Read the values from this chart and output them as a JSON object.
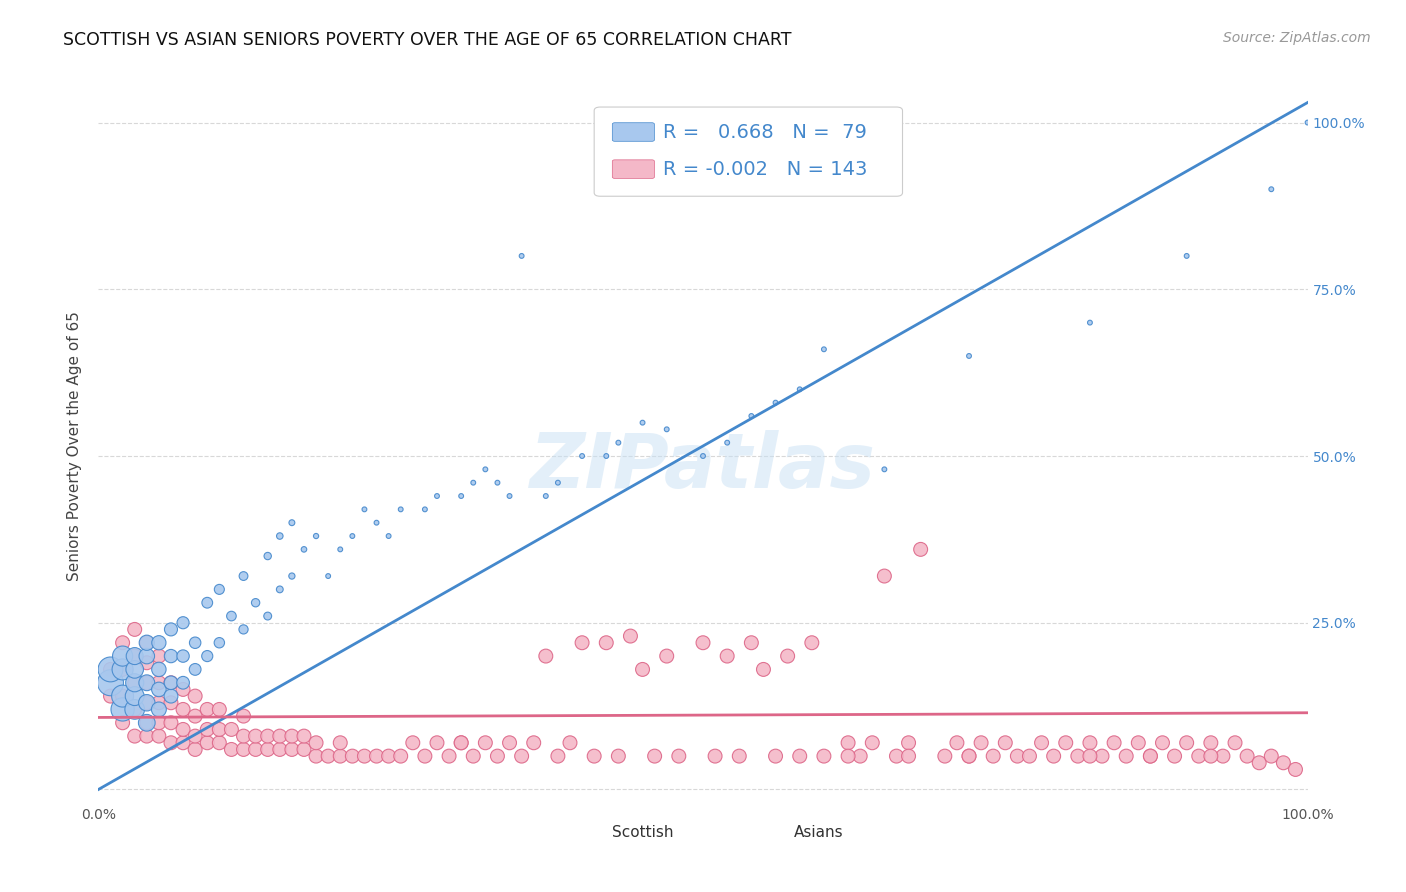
{
  "title": "SCOTTISH VS ASIAN SENIORS POVERTY OVER THE AGE OF 65 CORRELATION CHART",
  "source": "Source: ZipAtlas.com",
  "ylabel": "Seniors Poverty Over the Age of 65",
  "bg_color": "#ffffff",
  "plot_bg_color": "#ffffff",
  "grid_color": "#d8d8d8",
  "scottish_color": "#a8c8ee",
  "asian_color": "#f4b8c8",
  "scottish_line_color": "#4488cc",
  "asian_line_color": "#dd6688",
  "scottish_R": 0.668,
  "scottish_N": 79,
  "asian_R": -0.002,
  "asian_N": 143,
  "title_fontsize": 12.5,
  "source_fontsize": 10,
  "axis_label_fontsize": 11,
  "tick_fontsize": 10,
  "legend_fontsize": 13,
  "watermark": "ZIPatlas",
  "xlim": [
    0,
    1
  ],
  "ylim": [
    -0.02,
    1.05
  ],
  "xticks": [
    0.0,
    0.25,
    0.5,
    0.75,
    1.0
  ],
  "yticks": [
    0.0,
    0.25,
    0.5,
    0.75,
    1.0
  ],
  "xticklabels": [
    "0.0%",
    "",
    "",
    "",
    "100.0%"
  ],
  "right_yticklabels": [
    "",
    "25.0%",
    "50.0%",
    "75.0%",
    "100.0%"
  ],
  "scottish_trend": [
    0.0,
    1.05
  ],
  "asian_trend_start": 0.1,
  "asian_trend_end": 0.115,
  "scottish_x": [
    0.01,
    0.01,
    0.02,
    0.02,
    0.02,
    0.02,
    0.03,
    0.03,
    0.03,
    0.03,
    0.03,
    0.04,
    0.04,
    0.04,
    0.04,
    0.04,
    0.05,
    0.05,
    0.05,
    0.05,
    0.06,
    0.06,
    0.06,
    0.06,
    0.07,
    0.07,
    0.07,
    0.08,
    0.08,
    0.09,
    0.09,
    0.1,
    0.1,
    0.11,
    0.12,
    0.12,
    0.13,
    0.14,
    0.14,
    0.15,
    0.15,
    0.16,
    0.16,
    0.17,
    0.18,
    0.19,
    0.2,
    0.21,
    0.22,
    0.23,
    0.24,
    0.25,
    0.27,
    0.28,
    0.3,
    0.31,
    0.32,
    0.33,
    0.34,
    0.35,
    0.37,
    0.38,
    0.4,
    0.42,
    0.43,
    0.45,
    0.47,
    0.5,
    0.52,
    0.54,
    0.56,
    0.58,
    0.6,
    0.65,
    0.72,
    0.82,
    0.9,
    0.97,
    1.0
  ],
  "scottish_y": [
    0.16,
    0.18,
    0.12,
    0.14,
    0.18,
    0.2,
    0.12,
    0.14,
    0.16,
    0.18,
    0.2,
    0.1,
    0.13,
    0.16,
    0.2,
    0.22,
    0.12,
    0.15,
    0.18,
    0.22,
    0.14,
    0.16,
    0.2,
    0.24,
    0.16,
    0.2,
    0.25,
    0.18,
    0.22,
    0.2,
    0.28,
    0.22,
    0.3,
    0.26,
    0.24,
    0.32,
    0.28,
    0.26,
    0.35,
    0.3,
    0.38,
    0.32,
    0.4,
    0.36,
    0.38,
    0.32,
    0.36,
    0.38,
    0.42,
    0.4,
    0.38,
    0.42,
    0.42,
    0.44,
    0.44,
    0.46,
    0.48,
    0.46,
    0.44,
    0.8,
    0.44,
    0.46,
    0.5,
    0.5,
    0.52,
    0.55,
    0.54,
    0.5,
    0.52,
    0.56,
    0.58,
    0.6,
    0.66,
    0.48,
    0.65,
    0.7,
    0.8,
    0.9,
    1.0
  ],
  "scottish_sizes": [
    350,
    320,
    280,
    250,
    230,
    210,
    200,
    185,
    170,
    160,
    150,
    145,
    140,
    130,
    125,
    120,
    115,
    110,
    108,
    105,
    100,
    96,
    92,
    88,
    84,
    80,
    76,
    72,
    68,
    64,
    60,
    56,
    52,
    48,
    44,
    40,
    36,
    32,
    28,
    24,
    22,
    20,
    18,
    16,
    14,
    12,
    12,
    12,
    12,
    12,
    12,
    12,
    12,
    12,
    12,
    12,
    12,
    12,
    12,
    12,
    12,
    12,
    12,
    12,
    12,
    12,
    12,
    12,
    12,
    12,
    12,
    12,
    12,
    12,
    12,
    12,
    12,
    12,
    12
  ],
  "asian_x": [
    0.01,
    0.01,
    0.02,
    0.02,
    0.02,
    0.02,
    0.03,
    0.03,
    0.03,
    0.03,
    0.03,
    0.04,
    0.04,
    0.04,
    0.04,
    0.04,
    0.04,
    0.05,
    0.05,
    0.05,
    0.05,
    0.05,
    0.06,
    0.06,
    0.06,
    0.06,
    0.07,
    0.07,
    0.07,
    0.07,
    0.08,
    0.08,
    0.08,
    0.08,
    0.09,
    0.09,
    0.09,
    0.1,
    0.1,
    0.1,
    0.11,
    0.11,
    0.12,
    0.12,
    0.12,
    0.13,
    0.13,
    0.14,
    0.14,
    0.15,
    0.15,
    0.16,
    0.16,
    0.17,
    0.17,
    0.18,
    0.18,
    0.19,
    0.2,
    0.2,
    0.21,
    0.22,
    0.23,
    0.24,
    0.25,
    0.26,
    0.27,
    0.28,
    0.29,
    0.3,
    0.31,
    0.32,
    0.33,
    0.34,
    0.35,
    0.36,
    0.37,
    0.38,
    0.39,
    0.4,
    0.41,
    0.42,
    0.43,
    0.44,
    0.45,
    0.46,
    0.47,
    0.48,
    0.5,
    0.51,
    0.52,
    0.53,
    0.54,
    0.55,
    0.56,
    0.57,
    0.58,
    0.59,
    0.6,
    0.62,
    0.63,
    0.64,
    0.65,
    0.66,
    0.67,
    0.68,
    0.7,
    0.71,
    0.72,
    0.73,
    0.74,
    0.75,
    0.76,
    0.78,
    0.79,
    0.8,
    0.81,
    0.82,
    0.83,
    0.84,
    0.85,
    0.86,
    0.87,
    0.88,
    0.89,
    0.9,
    0.91,
    0.92,
    0.93,
    0.94,
    0.95,
    0.96,
    0.97,
    0.98,
    0.99,
    0.62,
    0.67,
    0.72,
    0.77,
    0.82,
    0.87,
    0.92,
    0.3
  ],
  "asian_y": [
    0.14,
    0.18,
    0.1,
    0.14,
    0.18,
    0.22,
    0.08,
    0.12,
    0.16,
    0.2,
    0.24,
    0.08,
    0.1,
    0.13,
    0.16,
    0.19,
    0.22,
    0.08,
    0.1,
    0.13,
    0.16,
    0.2,
    0.07,
    0.1,
    0.13,
    0.16,
    0.07,
    0.09,
    0.12,
    0.15,
    0.06,
    0.08,
    0.11,
    0.14,
    0.07,
    0.09,
    0.12,
    0.07,
    0.09,
    0.12,
    0.06,
    0.09,
    0.06,
    0.08,
    0.11,
    0.06,
    0.08,
    0.06,
    0.08,
    0.06,
    0.08,
    0.06,
    0.08,
    0.06,
    0.08,
    0.05,
    0.07,
    0.05,
    0.05,
    0.07,
    0.05,
    0.05,
    0.05,
    0.05,
    0.05,
    0.07,
    0.05,
    0.07,
    0.05,
    0.07,
    0.05,
    0.07,
    0.05,
    0.07,
    0.05,
    0.07,
    0.2,
    0.05,
    0.07,
    0.22,
    0.05,
    0.22,
    0.05,
    0.23,
    0.18,
    0.05,
    0.2,
    0.05,
    0.22,
    0.05,
    0.2,
    0.05,
    0.22,
    0.18,
    0.05,
    0.2,
    0.05,
    0.22,
    0.05,
    0.07,
    0.05,
    0.07,
    0.32,
    0.05,
    0.07,
    0.36,
    0.05,
    0.07,
    0.05,
    0.07,
    0.05,
    0.07,
    0.05,
    0.07,
    0.05,
    0.07,
    0.05,
    0.07,
    0.05,
    0.07,
    0.05,
    0.07,
    0.05,
    0.07,
    0.05,
    0.07,
    0.05,
    0.07,
    0.05,
    0.07,
    0.05,
    0.04,
    0.05,
    0.04,
    0.03,
    0.05,
    0.05,
    0.05,
    0.05,
    0.05,
    0.05,
    0.05,
    0.07
  ]
}
